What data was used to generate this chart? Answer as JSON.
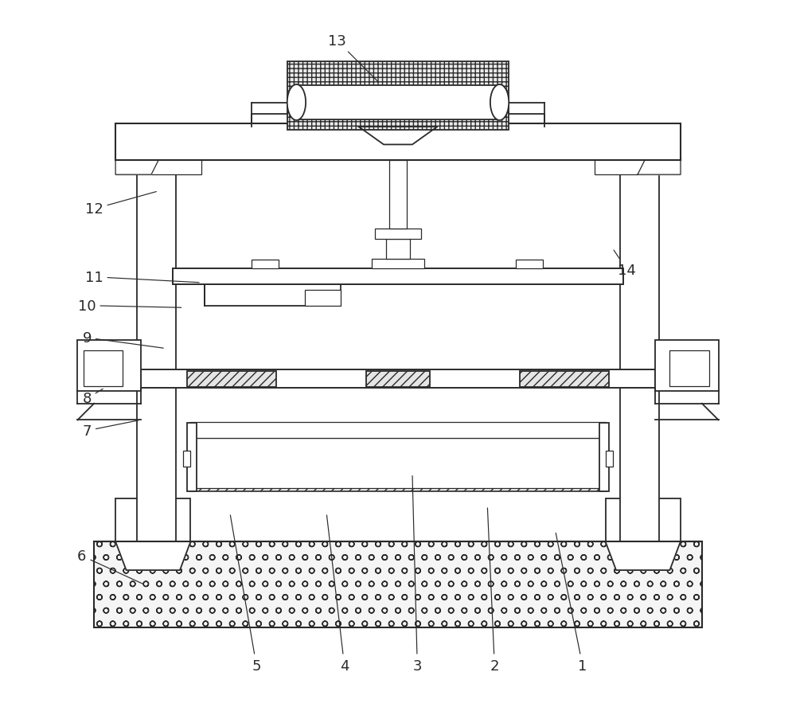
{
  "bg_color": "#ffffff",
  "line_color": "#2a2a2a",
  "fig_width": 10.0,
  "fig_height": 9.04,
  "label_fs": 13,
  "lw_main": 1.3,
  "lw_thin": 0.9,
  "labels": {
    "1": [
      0.758,
      0.072,
      0.72,
      0.26
    ],
    "2": [
      0.635,
      0.072,
      0.625,
      0.295
    ],
    "3": [
      0.527,
      0.072,
      0.52,
      0.34
    ],
    "4": [
      0.425,
      0.072,
      0.4,
      0.285
    ],
    "5": [
      0.302,
      0.072,
      0.265,
      0.285
    ],
    "6": [
      0.058,
      0.225,
      0.145,
      0.185
    ],
    "7": [
      0.065,
      0.4,
      0.14,
      0.415
    ],
    "8": [
      0.065,
      0.445,
      0.09,
      0.46
    ],
    "9": [
      0.065,
      0.53,
      0.175,
      0.515
    ],
    "10": [
      0.065,
      0.575,
      0.2,
      0.572
    ],
    "11": [
      0.075,
      0.615,
      0.225,
      0.607
    ],
    "12": [
      0.075,
      0.71,
      0.165,
      0.735
    ],
    "13": [
      0.415,
      0.945,
      0.475,
      0.885
    ],
    "14": [
      0.82,
      0.625,
      0.8,
      0.655
    ]
  }
}
